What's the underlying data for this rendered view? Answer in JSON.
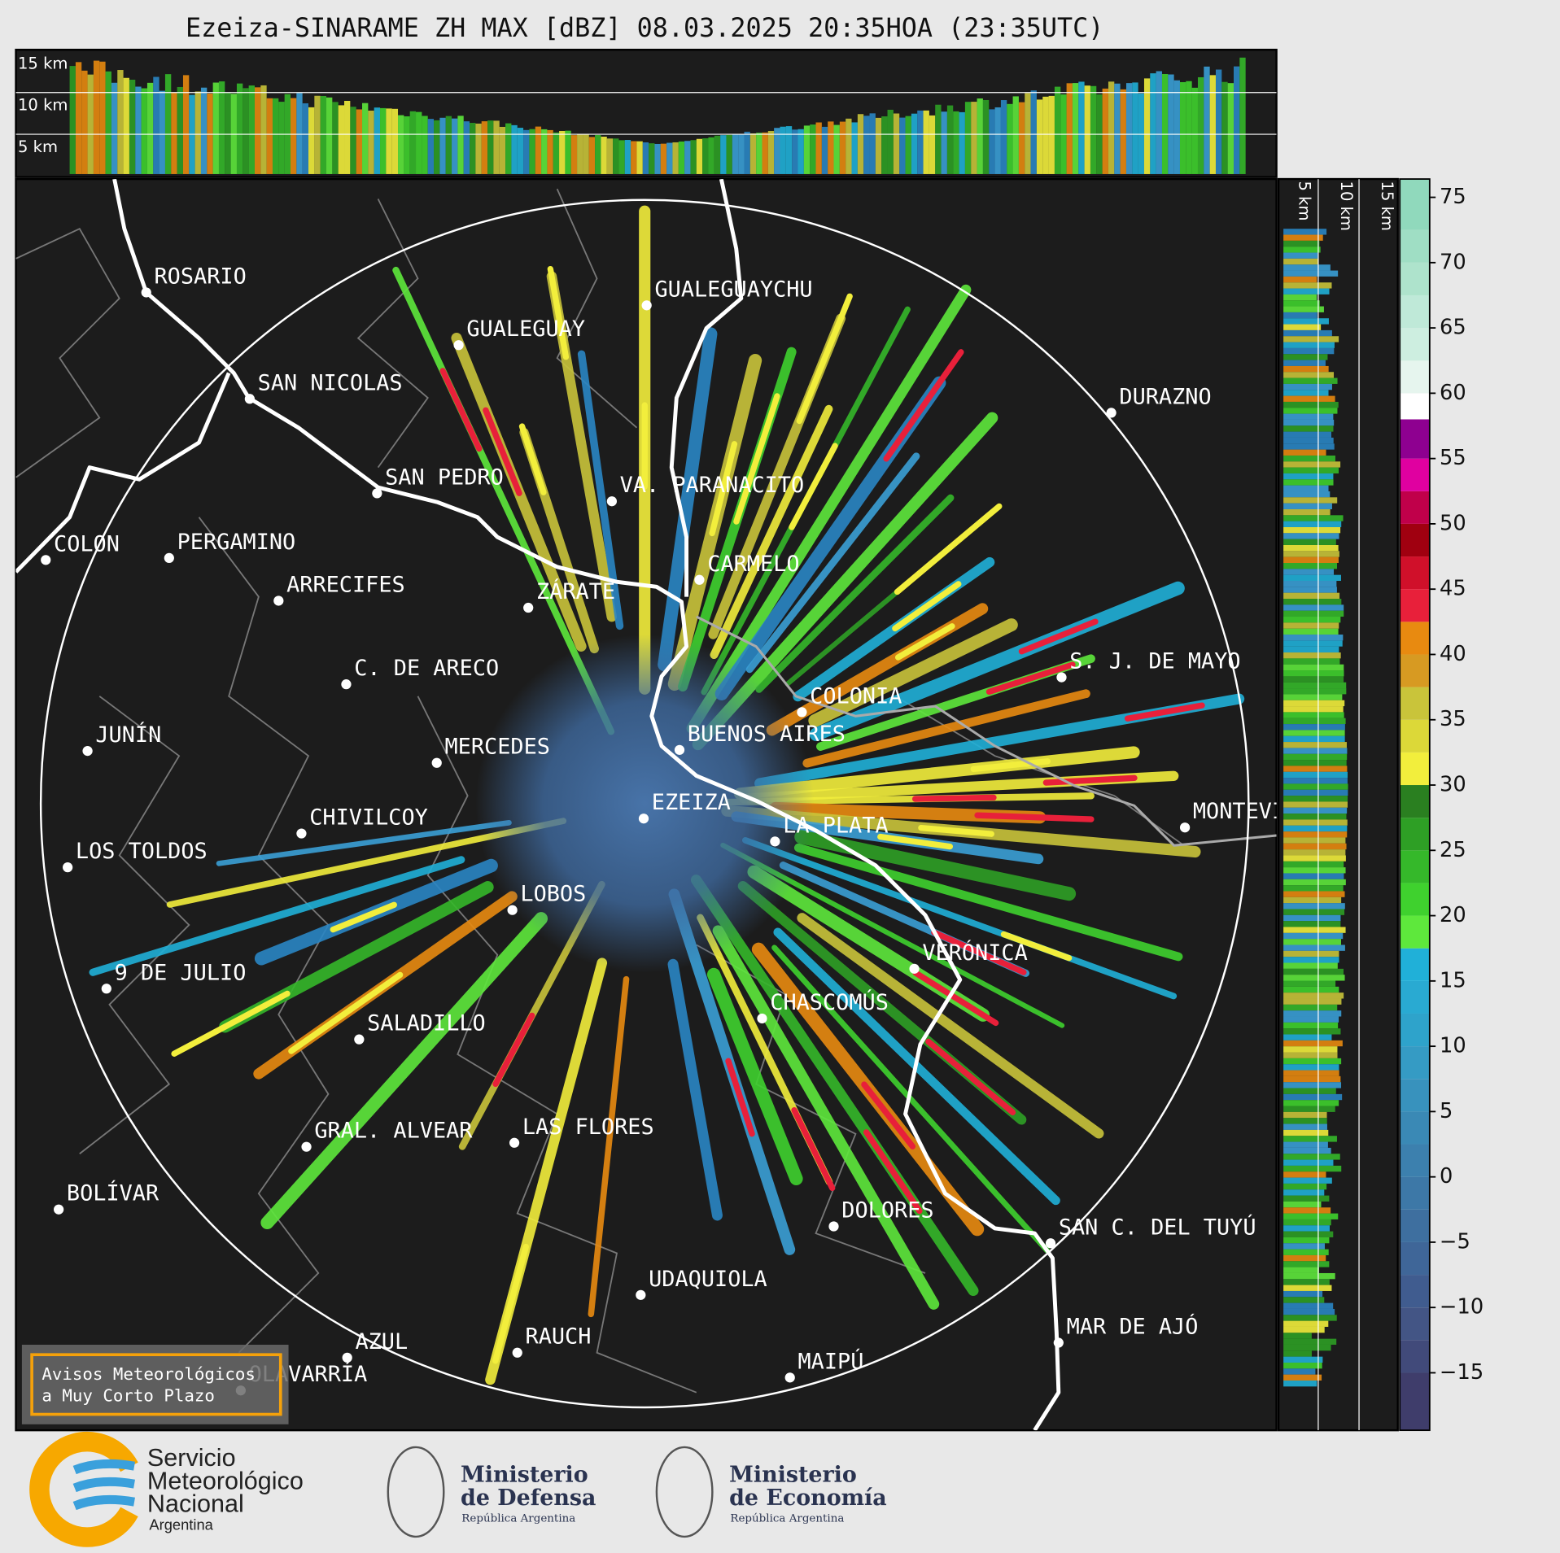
{
  "title": "Ezeiza-SINARAME ZH MAX [dBZ] 08.03.2025 20:35HOA (23:35UTC)",
  "top_panel": {
    "height_labels": [
      "15 km",
      "10 km",
      "5 km"
    ]
  },
  "side_panel": {
    "height_labels": [
      "5 km",
      "10 km",
      "15 km"
    ]
  },
  "cities": [
    "ROSARIO",
    "GUALEGUAYCHU",
    "GUALEGUAY",
    "SAN NICOLAS",
    "DURAZNO",
    "SAN PEDRO",
    "VA. PARANACITO",
    "COLON",
    "PERGAMINO",
    "CARMELO",
    "ZÁRATE",
    "ARRECIFES",
    "S. J. DE MAYO",
    "C. DE ARECO",
    "COLONIA",
    "JUNÍN",
    "BUENOS AIRES",
    "MERCEDES",
    "EZEIZA",
    "MONTEVIDEO",
    "CHIVILCOY",
    "LA PLATA",
    "LOS TOLDOS",
    "LOBOS",
    "VERÓNICA",
    "9 DE JULIO",
    "CHASCOMÚS",
    "SALADILLO",
    "GRAL. ALVEAR",
    "LAS FLORES",
    "BOLÍVAR",
    "DOLORES",
    "SAN C. DEL TUYÚ",
    "UDAQUIOLA",
    "MAR DE AJÓ",
    "RAUCH",
    "AZUL",
    "OLAVARRÍA",
    "MAIPÚ"
  ],
  "colorbar": {
    "lim": [
      -19.4,
      76.4
    ],
    "ticks": [
      75,
      70,
      65,
      60,
      55,
      50,
      45,
      40,
      35,
      30,
      25,
      20,
      15,
      10,
      5,
      0,
      {
        "value": -5,
        "label": "−5"
      },
      {
        "value": -10,
        "label": "−10"
      },
      {
        "value": -15,
        "label": "−15"
      }
    ],
    "bands": [
      {
        "from": -19.4,
        "color": "#3f3d6b"
      },
      {
        "from": -15,
        "color": "#414a7a"
      },
      {
        "from": -12.5,
        "color": "#435585"
      },
      {
        "from": -10,
        "color": "#405c8f"
      },
      {
        "from": -7.5,
        "color": "#3f6698"
      },
      {
        "from": -5,
        "color": "#3e6f9f"
      },
      {
        "from": -2.5,
        "color": "#3d78a7"
      },
      {
        "from": 0,
        "color": "#3c80ae"
      },
      {
        "from": 2.5,
        "color": "#3a89b5"
      },
      {
        "from": 5,
        "color": "#3892bd"
      },
      {
        "from": 7.5,
        "color": "#359bc4"
      },
      {
        "from": 10,
        "color": "#2ea3cb"
      },
      {
        "from": 12.5,
        "color": "#29aad2"
      },
      {
        "from": 15,
        "color": "#20b0d8"
      },
      {
        "from": 17.5,
        "color": "#5ee83c"
      },
      {
        "from": 20,
        "color": "#3fd12e"
      },
      {
        "from": 22.5,
        "color": "#35b82a"
      },
      {
        "from": 25,
        "color": "#2e9f25"
      },
      {
        "from": 27.5,
        "color": "#2a7f20"
      },
      {
        "from": 30,
        "color": "#f2ee3c"
      },
      {
        "from": 32.5,
        "color": "#dcd838"
      },
      {
        "from": 35,
        "color": "#c9c43a"
      },
      {
        "from": 37.5,
        "color": "#d79a22"
      },
      {
        "from": 40,
        "color": "#e88a10"
      },
      {
        "from": 42.5,
        "color": "#e8203a"
      },
      {
        "from": 45,
        "color": "#d0102a"
      },
      {
        "from": 47.5,
        "color": "#a00010"
      },
      {
        "from": 50,
        "color": "#c0004a"
      },
      {
        "from": 52.5,
        "color": "#e000a0"
      },
      {
        "from": 55,
        "color": "#8e0090"
      },
      {
        "from": 58,
        "color": "#ffffff"
      },
      {
        "from": 60,
        "color": "#e6f5ee"
      },
      {
        "from": 62.5,
        "color": "#cdeee0"
      },
      {
        "from": 65,
        "color": "#bfe9d8"
      },
      {
        "from": 67.5,
        "color": "#aee3cc"
      },
      {
        "from": 70,
        "color": "#9fdec4"
      },
      {
        "from": 72.5,
        "color": "#90d9bc"
      }
    ]
  },
  "notice": [
    "Avisos Meteorológicos",
    "a Muy Corto Plazo"
  ],
  "logos": {
    "smn": [
      "Servicio",
      "Meteorológico",
      "Nacional",
      "Argentina"
    ],
    "defensa": [
      "Ministerio",
      "de Defensa",
      "República Argentina"
    ],
    "economia": [
      "Ministerio",
      "de Economía",
      "República Argentina"
    ]
  }
}
